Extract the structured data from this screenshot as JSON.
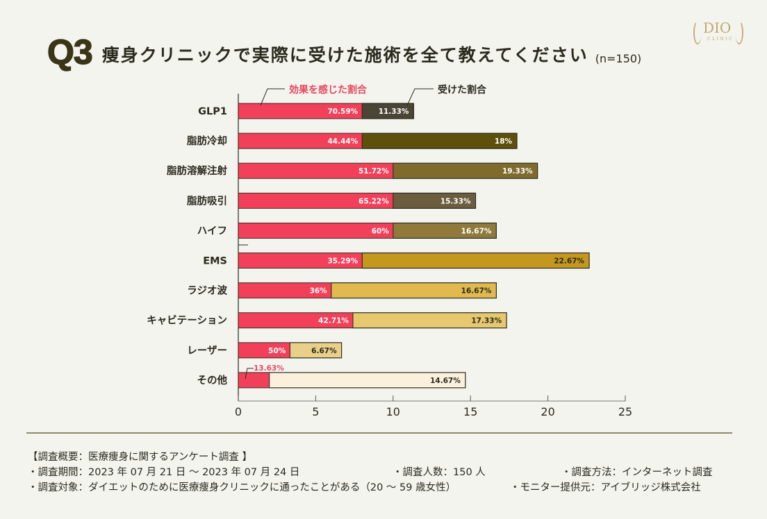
{
  "header": {
    "q_number": "Q3",
    "title": "痩身クリニックで実際に受けた施術を全て教えてください",
    "sample": "(n=150)"
  },
  "logo": {
    "brand": "DIO",
    "sub": "CLINIC"
  },
  "chart_data": {
    "type": "bar",
    "orientation": "horizontal",
    "stacked": true,
    "title": "痩身クリニックで実際に受けた施術を全て教えてください",
    "xlabel": "",
    "ylabel": "",
    "xlim": [
      0,
      25
    ],
    "xticks": [
      0,
      5,
      10,
      15,
      20,
      25
    ],
    "grid": false,
    "legend": [
      {
        "name": "効果を感じた割合",
        "color": "#f2405a",
        "text_color": "#e8475e"
      },
      {
        "name": "受けた割合",
        "color": "#4a4535",
        "text_color": "#2b2a1e"
      }
    ],
    "categories": [
      "GLP1",
      "脂肪冷却",
      "脂肪溶解注射",
      "脂肪吸引",
      "ハイフ",
      "EMS",
      "ラジオ波",
      "キャビテーション",
      "レーザー",
      "その他"
    ],
    "received_pct": [
      11.33,
      18,
      19.33,
      15.33,
      16.67,
      22.67,
      16.67,
      17.33,
      6.67,
      14.67
    ],
    "received_labels": [
      "11.33%",
      "18%",
      "19.33%",
      "15.33%",
      "16.67%",
      "22.67%",
      "16.67%",
      "17.33%",
      "6.67%",
      "14.67%"
    ],
    "effect_pct_of_received": [
      70.59,
      44.44,
      51.72,
      65.22,
      60,
      35.29,
      36,
      42.71,
      50,
      13.63
    ],
    "effect_labels": [
      "70.59%",
      "44.44%",
      "51.72%",
      "65.22%",
      "60%",
      "35.29%",
      "36%",
      "42.71%",
      "50%",
      "13.63%"
    ],
    "received_colors": [
      "#4a4535",
      "#5e4f0b",
      "#7f6c2d",
      "#6b5d3e",
      "#8f7a3c",
      "#c4981f",
      "#e0ba4f",
      "#e6c86f",
      "#e8d08a",
      "#faf0dc"
    ],
    "received_label_colors": [
      "#ffffff",
      "#ffffff",
      "#ffffff",
      "#ffffff",
      "#ffffff",
      "#2b2a1e",
      "#2b2a1e",
      "#2b2a1e",
      "#2b2a1e",
      "#2b2a1e"
    ],
    "effect_color": "#f2405a",
    "note": "Bar length = received percentage; pink segment = share of recipients who felt an effect"
  },
  "notes": {
    "heading": "【調査概要：医療痩身に関するアンケート調査 】",
    "period": "・調査期間：2023 年 07 月 21 日 ～ 2023 年 07 月 24 日",
    "count": "・調査人数：150 人",
    "method": "・調査方法：インターネット調査",
    "target": "・調査対象：ダイエットのために医療痩身クリニックに通ったことがある（20 ～ 59 歳女性）",
    "provider": "・モニター提供元：アイブリッジ株式会社"
  }
}
